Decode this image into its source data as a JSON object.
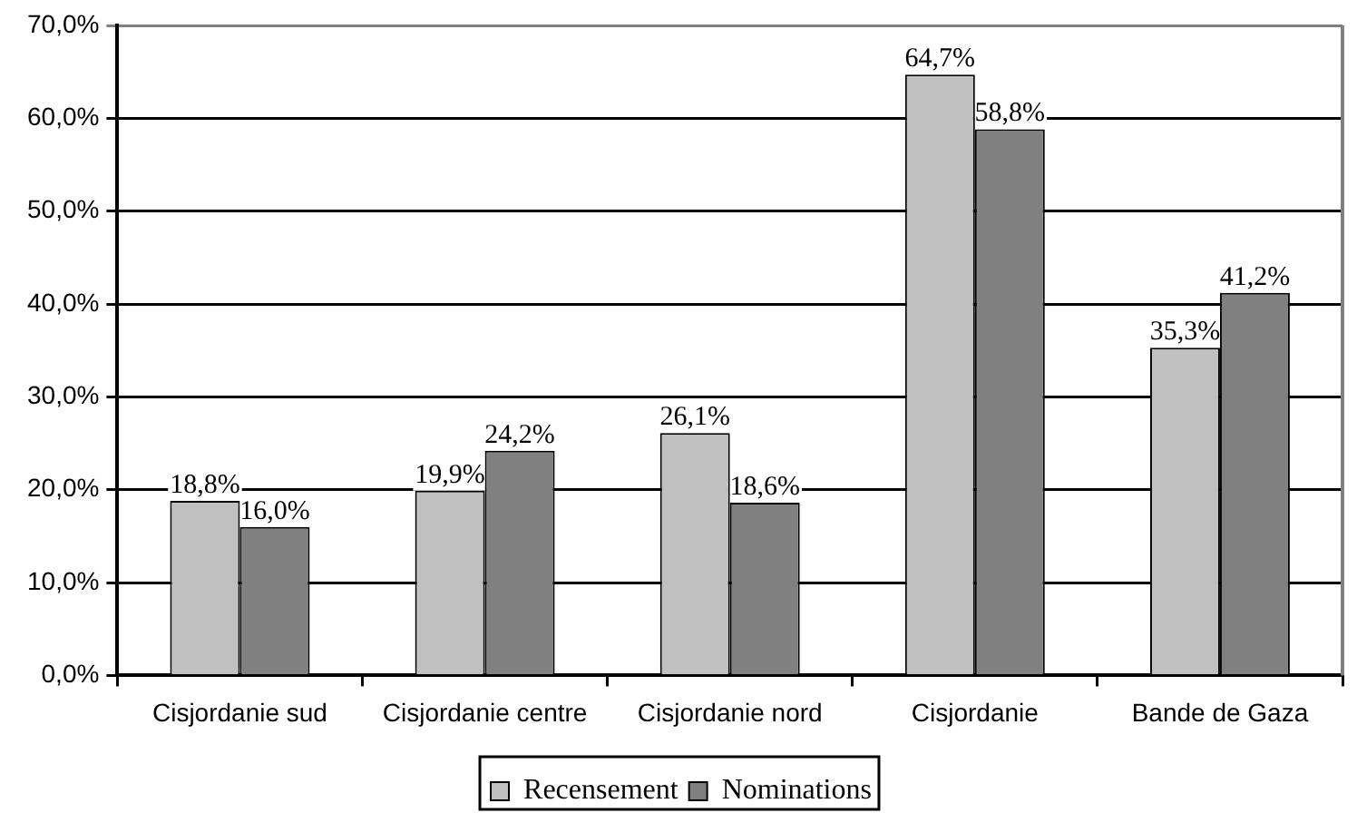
{
  "chart_data": {
    "type": "bar",
    "categories": [
      "Cisjordanie sud",
      "Cisjordanie centre",
      "Cisjordanie nord",
      "Cisjordanie",
      "Bande de Gaza"
    ],
    "series": [
      {
        "name": "Recensement",
        "color": "#c0c0c0",
        "values": [
          18.8,
          19.9,
          26.1,
          64.7,
          35.3
        ],
        "value_labels": [
          "18,8%",
          "19,9%",
          "26,1%",
          "64,7%",
          "35,3%"
        ]
      },
      {
        "name": "Nominations",
        "color": "#808080",
        "values": [
          16.0,
          24.2,
          18.6,
          58.8,
          41.2
        ],
        "value_labels": [
          "16,0%",
          "24,2%",
          "18,6%",
          "58,8%",
          "41,2%"
        ]
      }
    ],
    "ylim": [
      0,
      70
    ],
    "yticks": [
      {
        "value": 0,
        "label": "0,0%"
      },
      {
        "value": 10,
        "label": "10,0%"
      },
      {
        "value": 20,
        "label": "20,0%"
      },
      {
        "value": 30,
        "label": "30,0%"
      },
      {
        "value": 40,
        "label": "40,0%"
      },
      {
        "value": 50,
        "label": "50,0%"
      },
      {
        "value": 60,
        "label": "60,0%"
      },
      {
        "value": 70,
        "label": "70,0%"
      }
    ],
    "grid": "y",
    "legend": "bottom"
  }
}
